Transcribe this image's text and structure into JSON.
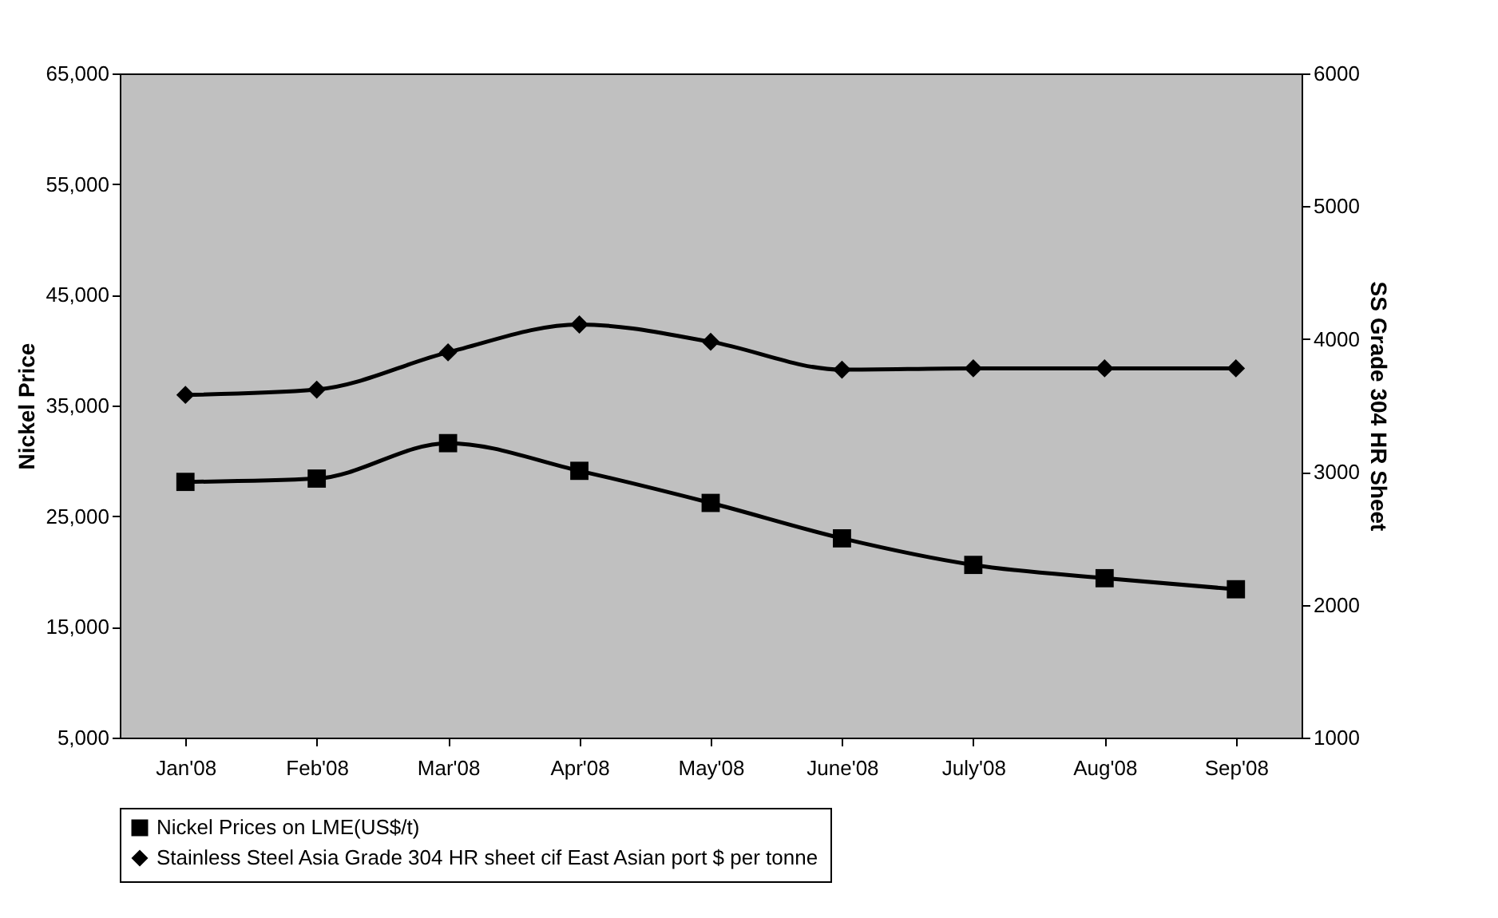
{
  "chart_data": {
    "type": "line",
    "categories": [
      "Jan'08",
      "Feb'08",
      "Mar'08",
      "Apr'08",
      "May'08",
      "June'08",
      "July'08",
      "Aug'08",
      "Sep'08"
    ],
    "series": [
      {
        "name": "Nickel Prices on LME(US$/t)",
        "color": "#000000",
        "marker": "square",
        "values": [
          28100,
          28400,
          31600,
          29100,
          26200,
          23000,
          20600,
          19400,
          18400
        ]
      },
      {
        "name": "Stainless Steel Asia Grade 304 HR sheet cif East Asian port $ per tonne",
        "color": "#000000",
        "marker": "diamond",
        "axis": "y2",
        "values": [
          3580,
          3620,
          3900,
          4110,
          3980,
          3770,
          3780,
          3780,
          3780
        ]
      }
    ],
    "ylabel": "Nickel Price",
    "y2label": "SS Grade 304 HR Sheet",
    "ylim": [
      5000,
      65000
    ],
    "yticks": [
      {
        "value": 5000,
        "label": "5,000"
      },
      {
        "value": 15000,
        "label": "15,000"
      },
      {
        "value": 25000,
        "label": "25,000"
      },
      {
        "value": 35000,
        "label": "35,000"
      },
      {
        "value": 45000,
        "label": "45,000"
      },
      {
        "value": 55000,
        "label": "55,000"
      },
      {
        "value": 65000,
        "label": "65,000"
      }
    ],
    "y2lim": [
      1000,
      6000
    ],
    "y2ticks": [
      1000,
      2000,
      3000,
      4000,
      5000,
      6000
    ],
    "grid": false,
    "legend": "bottom",
    "line_style": "solid"
  }
}
